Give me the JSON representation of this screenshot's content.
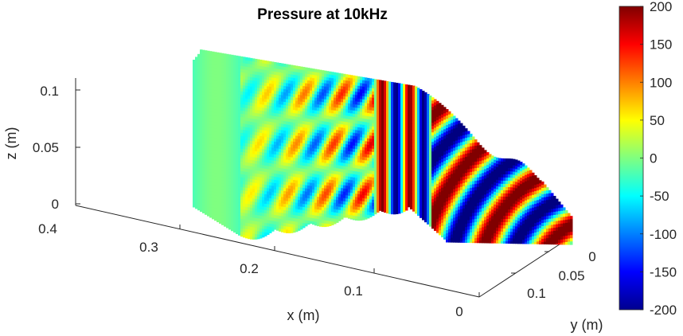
{
  "chart_data": {
    "type": "surface3d",
    "title": "Pressure at 10kHz",
    "xlabel": "x (m)",
    "ylabel": "y (m)",
    "zlabel": "z (m)",
    "x_ticks": [
      "0",
      "0.1",
      "0.2",
      "0.3",
      "0.4"
    ],
    "y_ticks": [
      "0",
      "0.05",
      "0.1"
    ],
    "z_ticks": [
      "0",
      "0.05",
      "0.1"
    ],
    "xlim": [
      0,
      0.4
    ],
    "ylim": [
      0,
      0.12
    ],
    "zlim": [
      0,
      0.11
    ],
    "colorbar": {
      "colormap": "jet",
      "limits": [
        -200,
        200
      ],
      "ticks": [
        "200",
        "150",
        "100",
        "50",
        "0",
        "-50",
        "-100",
        "-150",
        "-200"
      ]
    },
    "wave": {
      "frequency_hz": 10000
    }
  },
  "colors": {
    "axis": "#262626",
    "background": "#ffffff"
  }
}
